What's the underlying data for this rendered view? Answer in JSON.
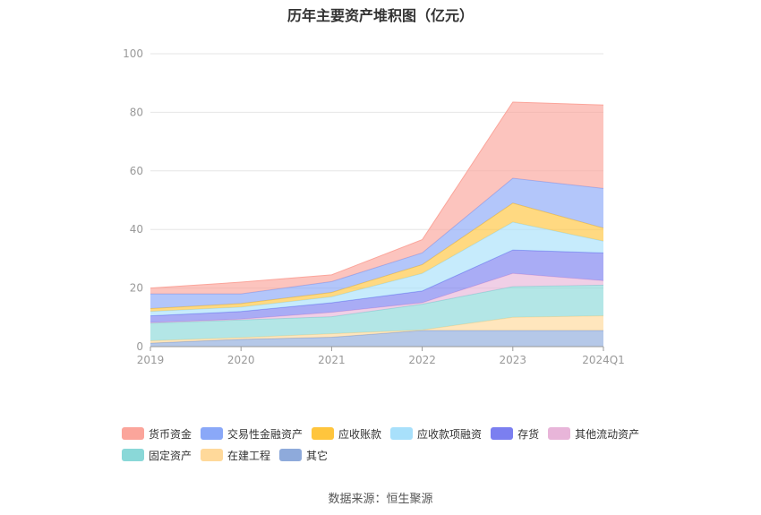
{
  "chart_data": {
    "type": "area",
    "title": "历年主要资产堆积图（亿元）",
    "stacked": true,
    "categories": [
      "2019",
      "2020",
      "2021",
      "2022",
      "2023",
      "2024Q1"
    ],
    "ylim": [
      0,
      100
    ],
    "yticks": [
      0,
      20,
      40,
      60,
      80,
      100
    ],
    "grid": true,
    "legend_position": "bottom",
    "series": [
      {
        "name": "其它",
        "color": "#8eaadb",
        "values": [
          1.2,
          2.5,
          3.2,
          5.5,
          5.5,
          5.5
        ]
      },
      {
        "name": "在建工程",
        "color": "#ffd99a",
        "values": [
          0.8,
          0.6,
          1.2,
          0.2,
          4.5,
          5.0
        ]
      },
      {
        "name": "固定资产",
        "color": "#8ad8d8",
        "values": [
          6.0,
          6.0,
          5.8,
          8.8,
          10.5,
          10.5
        ]
      },
      {
        "name": "其他流动资产",
        "color": "#e8b5d9",
        "values": [
          0.2,
          0.3,
          1.5,
          0.5,
          4.5,
          1.5
        ]
      },
      {
        "name": "存货",
        "color": "#7b7ff0",
        "values": [
          2.3,
          2.6,
          3.3,
          4.0,
          8.0,
          9.5
        ]
      },
      {
        "name": "应收款项融资",
        "color": "#a8e0fb",
        "values": [
          1.5,
          1.5,
          2.0,
          6.0,
          9.5,
          4.0
        ]
      },
      {
        "name": "应收账款",
        "color": "#ffc53d",
        "values": [
          1.0,
          1.2,
          1.5,
          3.0,
          6.5,
          4.5
        ]
      },
      {
        "name": "交易性金融资产",
        "color": "#8aa8f8",
        "values": [
          5.0,
          3.3,
          3.7,
          4.0,
          8.5,
          13.5
        ]
      },
      {
        "name": "货币资金",
        "color": "#fba59b",
        "values": [
          2.0,
          4.0,
          2.3,
          4.5,
          26.0,
          28.5
        ]
      }
    ]
  },
  "legend": {
    "items": [
      {
        "label": "货币资金",
        "color": "#fba59b"
      },
      {
        "label": "交易性金融资产",
        "color": "#8aa8f8"
      },
      {
        "label": "应收账款",
        "color": "#ffc53d"
      },
      {
        "label": "应收款项融资",
        "color": "#a8e0fb"
      },
      {
        "label": "存货",
        "color": "#7b7ff0"
      },
      {
        "label": "其他流动资产",
        "color": "#e8b5d9"
      },
      {
        "label": "固定资产",
        "color": "#8ad8d8"
      },
      {
        "label": "在建工程",
        "color": "#ffd99a"
      },
      {
        "label": "其它",
        "color": "#8eaadb"
      }
    ]
  },
  "source": "数据来源：恒生聚源"
}
